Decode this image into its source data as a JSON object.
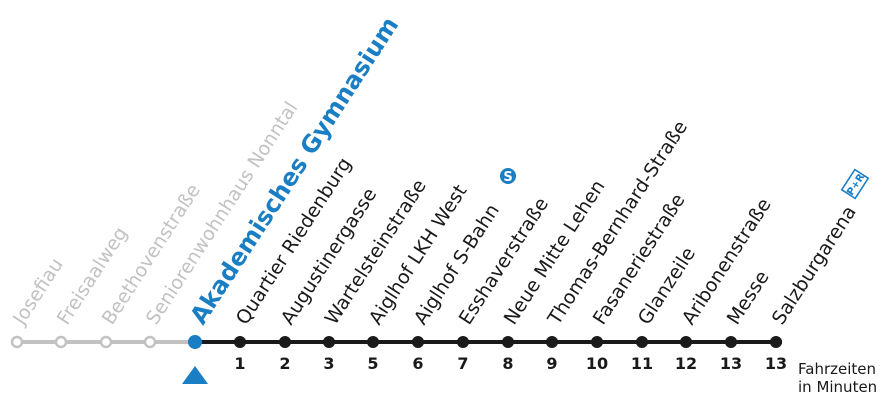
{
  "route": {
    "past_stops": [
      {
        "name": "Josefiau"
      },
      {
        "name": "Freisaalweg"
      },
      {
        "name": "Beethovenstraße"
      },
      {
        "name": "Seniorenwohnhaus Nonntal"
      }
    ],
    "current_stop": {
      "name": "Akademisches Gymnasium"
    },
    "next_stops": [
      {
        "name": "Quartier Riedenburg",
        "minutes": "1"
      },
      {
        "name": "Augustinergasse",
        "minutes": "2"
      },
      {
        "name": "Wartelsteinstraße",
        "minutes": "3"
      },
      {
        "name": "Aiglhof LKH West",
        "minutes": "5"
      },
      {
        "name": "Aiglhof S-Bahn",
        "minutes": "6",
        "icon": "s-bahn-icon"
      },
      {
        "name": "Esshaverstraße",
        "minutes": "7"
      },
      {
        "name": "Neue Mitte Lehen",
        "minutes": "8"
      },
      {
        "name": "Thomas-Bernhard-Straße",
        "minutes": "9"
      },
      {
        "name": "Fasaneriestraße",
        "minutes": "10"
      },
      {
        "name": "Glanzeile",
        "minutes": "11"
      },
      {
        "name": "Aribonenstraße",
        "minutes": "12"
      },
      {
        "name": "Messe",
        "minutes": "13"
      },
      {
        "name": "Salzburgarena",
        "minutes": "13",
        "icon": "park-and-ride-icon",
        "icon_text": "P+R"
      }
    ]
  },
  "legend": {
    "line1": "Fahrzeiten",
    "line2": "in Minuten"
  },
  "colors": {
    "past": "#c2c2c2",
    "line": "#1a1a1a",
    "current": "#1a7ec4"
  }
}
